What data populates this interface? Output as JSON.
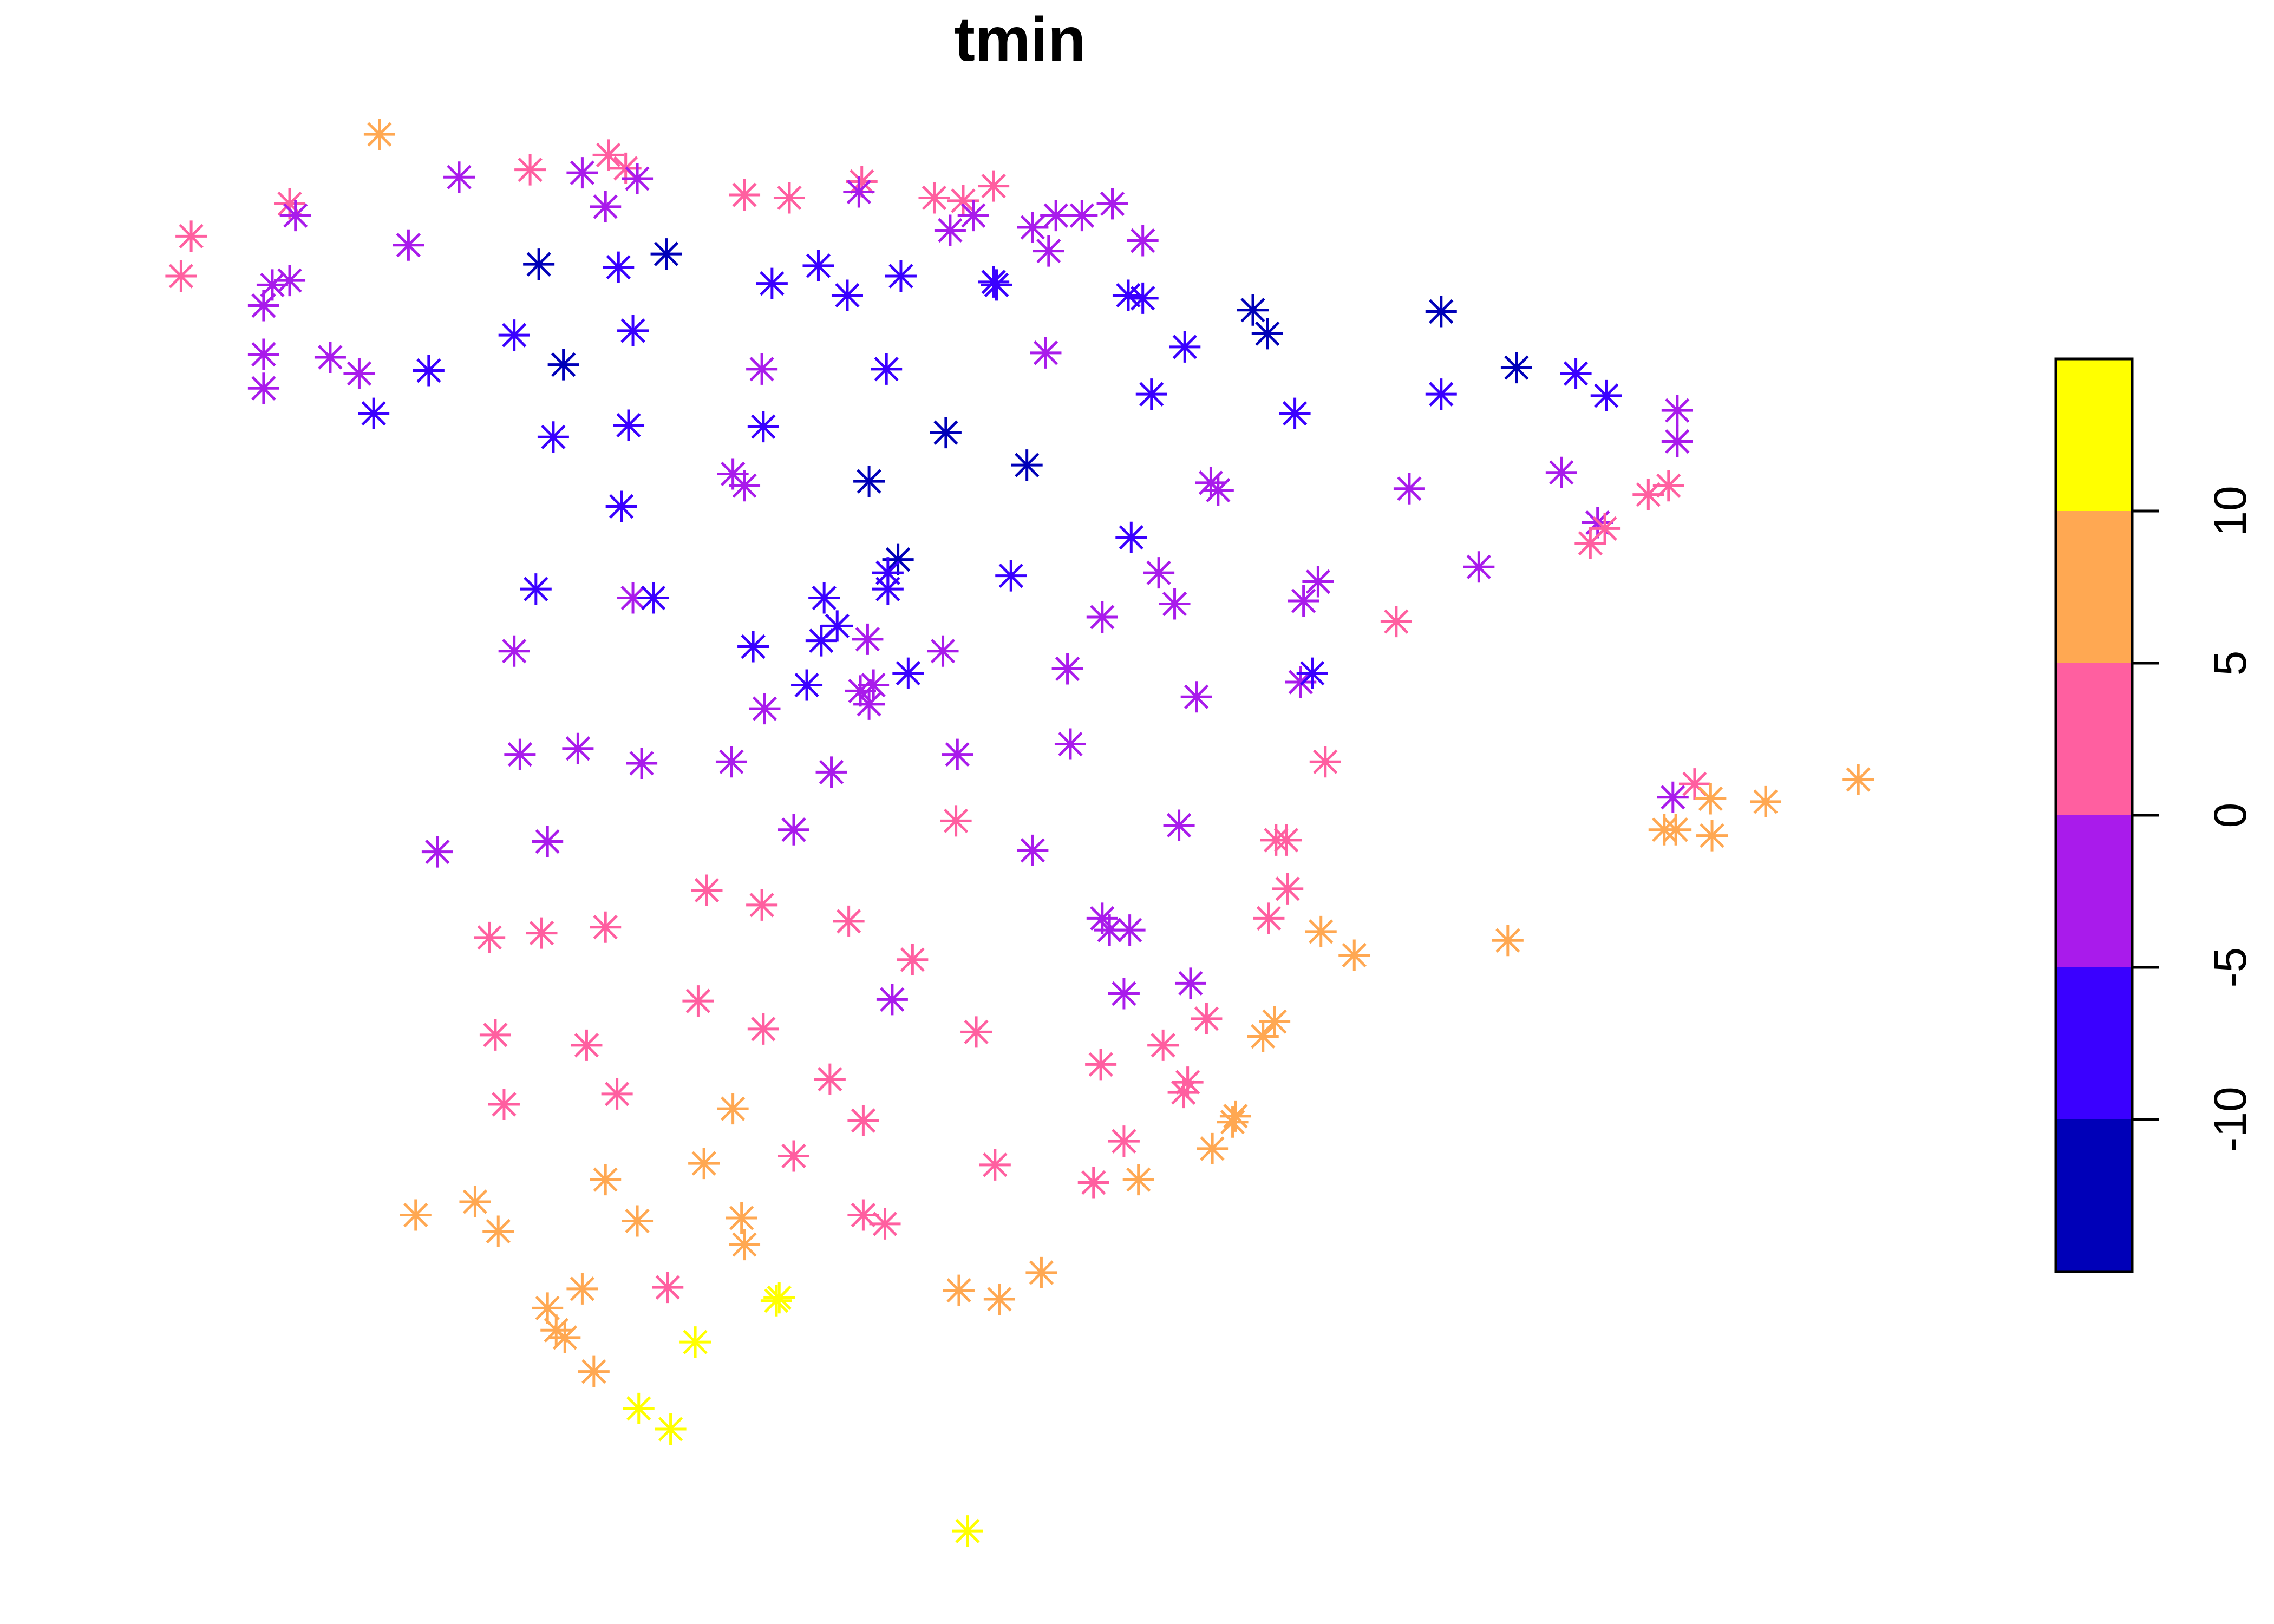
{
  "chart_data": {
    "type": "scatter",
    "title": "tmin",
    "xlabel": "",
    "ylabel": "",
    "marker": "asterisk",
    "grid": false,
    "axes_shown": false,
    "legend": {
      "type": "color-bar",
      "placement": "right",
      "ticks": [
        -10,
        -5,
        0,
        5,
        10
      ],
      "tick_labels": [
        "-10",
        "-5",
        "0",
        "5",
        "10"
      ],
      "range": [
        -15,
        15
      ],
      "bins": [
        {
          "from": -15,
          "to": -10,
          "color": "#0000B8"
        },
        {
          "from": -10,
          "to": -5,
          "color": "#3A00FF"
        },
        {
          "from": -5,
          "to": 0,
          "color": "#A91BEB"
        },
        {
          "from": 0,
          "to": 5,
          "color": "#FF5FA0"
        },
        {
          "from": 5,
          "to": 10,
          "color": "#FFA852"
        },
        {
          "from": 10,
          "to": 15,
          "color": "#FFFF00"
        }
      ]
    },
    "xlim": [
      0,
      1570
    ],
    "ylim": [
      0,
      1100
    ],
    "points": [
      [
        262,
        91,
        7
      ],
      [
        317,
        120,
        -2
      ],
      [
        366,
        115,
        2
      ],
      [
        402,
        117,
        -2
      ],
      [
        420,
        105,
        2
      ],
      [
        432,
        114,
        2
      ],
      [
        440,
        121,
        -2
      ],
      [
        418,
        140,
        -2
      ],
      [
        200,
        138,
        2
      ],
      [
        204,
        146,
        -2
      ],
      [
        132,
        160,
        2
      ],
      [
        125,
        187,
        2
      ],
      [
        282,
        166,
        -2
      ],
      [
        188,
        193,
        -2
      ],
      [
        200,
        190,
        -2
      ],
      [
        182,
        207,
        -2
      ],
      [
        182,
        240,
        -2
      ],
      [
        228,
        242,
        -2
      ],
      [
        248,
        253,
        -2
      ],
      [
        182,
        263,
        -2
      ],
      [
        372,
        179,
        -12
      ],
      [
        427,
        181,
        -7
      ],
      [
        460,
        172,
        -12
      ],
      [
        355,
        227,
        -7
      ],
      [
        389,
        247,
        -12
      ],
      [
        437,
        224,
        -7
      ],
      [
        296,
        251,
        -7
      ],
      [
        258,
        280,
        -7
      ],
      [
        382,
        296,
        -7
      ],
      [
        434,
        288,
        -7
      ],
      [
        429,
        343,
        -7
      ],
      [
        514,
        132,
        2
      ],
      [
        545,
        134,
        2
      ],
      [
        595,
        123,
        2
      ],
      [
        593,
        130,
        -2
      ],
      [
        645,
        134,
        2
      ],
      [
        665,
        136,
        2
      ],
      [
        686,
        126,
        2
      ],
      [
        656,
        156,
        -2
      ],
      [
        672,
        146,
        -2
      ],
      [
        713,
        154,
        -2
      ],
      [
        724,
        170,
        -2
      ],
      [
        729,
        146,
        -2
      ],
      [
        747,
        146,
        -2
      ],
      [
        768,
        138,
        -2
      ],
      [
        789,
        163,
        -2
      ],
      [
        533,
        192,
        -7
      ],
      [
        565,
        180,
        -7
      ],
      [
        585,
        200,
        -7
      ],
      [
        622,
        187,
        -7
      ],
      [
        686,
        191,
        -7
      ],
      [
        688,
        193,
        -7
      ],
      [
        779,
        200,
        -7
      ],
      [
        789,
        202,
        -7
      ],
      [
        818,
        235,
        -7
      ],
      [
        865,
        210,
        -12
      ],
      [
        875,
        226,
        -12
      ],
      [
        795,
        267,
        -7
      ],
      [
        894,
        280,
        -7
      ],
      [
        995,
        211,
        -12
      ],
      [
        995,
        267,
        -7
      ],
      [
        1047,
        249,
        -12
      ],
      [
        1088,
        253,
        -7
      ],
      [
        1109,
        268,
        -7
      ],
      [
        526,
        250,
        -2
      ],
      [
        612,
        250,
        -7
      ],
      [
        722,
        239,
        -2
      ],
      [
        527,
        289,
        -7
      ],
      [
        653,
        293,
        -12
      ],
      [
        709,
        315,
        -12
      ],
      [
        600,
        326,
        -12
      ],
      [
        506,
        321,
        -2
      ],
      [
        514,
        329,
        -2
      ],
      [
        836,
        327,
        -2
      ],
      [
        841,
        332,
        -2
      ],
      [
        973,
        331,
        -2
      ],
      [
        1078,
        320,
        -2
      ],
      [
        1158,
        278,
        -2
      ],
      [
        1158,
        299,
        -2
      ],
      [
        1152,
        329,
        2
      ],
      [
        1138,
        335,
        2
      ],
      [
        1103,
        354,
        -2
      ],
      [
        1098,
        368,
        2
      ],
      [
        1108,
        358,
        2
      ],
      [
        1021,
        384,
        -2
      ],
      [
        370,
        399,
        -7
      ],
      [
        437,
        405,
        -2
      ],
      [
        451,
        405,
        -7
      ],
      [
        355,
        441,
        -2
      ],
      [
        520,
        438,
        -7
      ],
      [
        569,
        405,
        -7
      ],
      [
        578,
        424,
        -7
      ],
      [
        567,
        434,
        -7
      ],
      [
        620,
        379,
        -12
      ],
      [
        613,
        388,
        -7
      ],
      [
        613,
        399,
        -7
      ],
      [
        698,
        390,
        -7
      ],
      [
        781,
        364,
        -7
      ],
      [
        800,
        388,
        -2
      ],
      [
        811,
        409,
        -2
      ],
      [
        761,
        418,
        -2
      ],
      [
        737,
        453,
        -2
      ],
      [
        826,
        472,
        -2
      ],
      [
        599,
        433,
        -2
      ],
      [
        651,
        441,
        -2
      ],
      [
        627,
        456,
        -7
      ],
      [
        603,
        464,
        -2
      ],
      [
        600,
        477,
        -2
      ],
      [
        594,
        468,
        -2
      ],
      [
        557,
        464,
        -7
      ],
      [
        528,
        480,
        -2
      ],
      [
        910,
        394,
        -2
      ],
      [
        900,
        407,
        -2
      ],
      [
        898,
        462,
        -2
      ],
      [
        906,
        456,
        -7
      ],
      [
        964,
        421,
        2
      ],
      [
        359,
        511,
        -2
      ],
      [
        399,
        507,
        -2
      ],
      [
        443,
        517,
        -2
      ],
      [
        505,
        516,
        -2
      ],
      [
        574,
        523,
        -2
      ],
      [
        661,
        511,
        -2
      ],
      [
        739,
        504,
        -2
      ],
      [
        915,
        516,
        2
      ],
      [
        302,
        577,
        -2
      ],
      [
        378,
        570,
        -2
      ],
      [
        548,
        562,
        -2
      ],
      [
        660,
        556,
        2
      ],
      [
        713,
        576,
        -2
      ],
      [
        814,
        559,
        -2
      ],
      [
        881,
        569,
        2
      ],
      [
        888,
        569,
        2
      ],
      [
        889,
        602,
        2
      ],
      [
        876,
        622,
        2
      ],
      [
        1155,
        540,
        -2
      ],
      [
        1170,
        531,
        2
      ],
      [
        1181,
        541,
        7
      ],
      [
        1149,
        562,
        7
      ],
      [
        1157,
        562,
        7
      ],
      [
        1182,
        566,
        7
      ],
      [
        1219,
        543,
        7
      ],
      [
        1283,
        528,
        7
      ],
      [
        338,
        635,
        2
      ],
      [
        374,
        632,
        2
      ],
      [
        418,
        628,
        2
      ],
      [
        488,
        603,
        2
      ],
      [
        526,
        613,
        2
      ],
      [
        586,
        624,
        2
      ],
      [
        630,
        650,
        2
      ],
      [
        616,
        677,
        -2
      ],
      [
        761,
        622,
        -2
      ],
      [
        766,
        630,
        -2
      ],
      [
        780,
        630,
        -2
      ],
      [
        776,
        673,
        -2
      ],
      [
        822,
        666,
        -2
      ],
      [
        912,
        631,
        7
      ],
      [
        935,
        647,
        7
      ],
      [
        1041,
        637,
        7
      ],
      [
        342,
        701,
        2
      ],
      [
        405,
        708,
        2
      ],
      [
        482,
        678,
        2
      ],
      [
        527,
        697,
        2
      ],
      [
        674,
        699,
        2
      ],
      [
        833,
        690,
        2
      ],
      [
        880,
        692,
        7
      ],
      [
        872,
        702,
        7
      ],
      [
        760,
        721,
        2
      ],
      [
        803,
        708,
        2
      ],
      [
        820,
        733,
        2
      ],
      [
        817,
        740,
        2
      ],
      [
        348,
        748,
        2
      ],
      [
        426,
        741,
        2
      ],
      [
        506,
        751,
        7
      ],
      [
        573,
        731,
        2
      ],
      [
        596,
        759,
        2
      ],
      [
        776,
        773,
        2
      ],
      [
        853,
        756,
        7
      ],
      [
        851,
        760,
        7
      ],
      [
        837,
        778,
        7
      ],
      [
        287,
        823,
        7
      ],
      [
        328,
        814,
        7
      ],
      [
        344,
        834,
        7
      ],
      [
        418,
        799,
        7
      ],
      [
        440,
        827,
        7
      ],
      [
        486,
        788,
        7
      ],
      [
        512,
        825,
        7
      ],
      [
        514,
        843,
        7
      ],
      [
        548,
        783,
        2
      ],
      [
        596,
        823,
        2
      ],
      [
        611,
        829,
        2
      ],
      [
        687,
        789,
        2
      ],
      [
        755,
        801,
        2
      ],
      [
        786,
        799,
        7
      ],
      [
        378,
        886,
        7
      ],
      [
        402,
        873,
        7
      ],
      [
        384,
        901,
        7
      ],
      [
        390,
        906,
        7
      ],
      [
        410,
        929,
        7
      ],
      [
        461,
        872,
        2
      ],
      [
        538,
        879,
        12
      ],
      [
        536,
        881,
        12
      ],
      [
        480,
        909,
        12
      ],
      [
        441,
        954,
        12
      ],
      [
        463,
        968,
        12
      ],
      [
        662,
        874,
        7
      ],
      [
        690,
        880,
        7
      ],
      [
        719,
        862,
        7
      ],
      [
        668,
        1037,
        12
      ]
    ]
  }
}
